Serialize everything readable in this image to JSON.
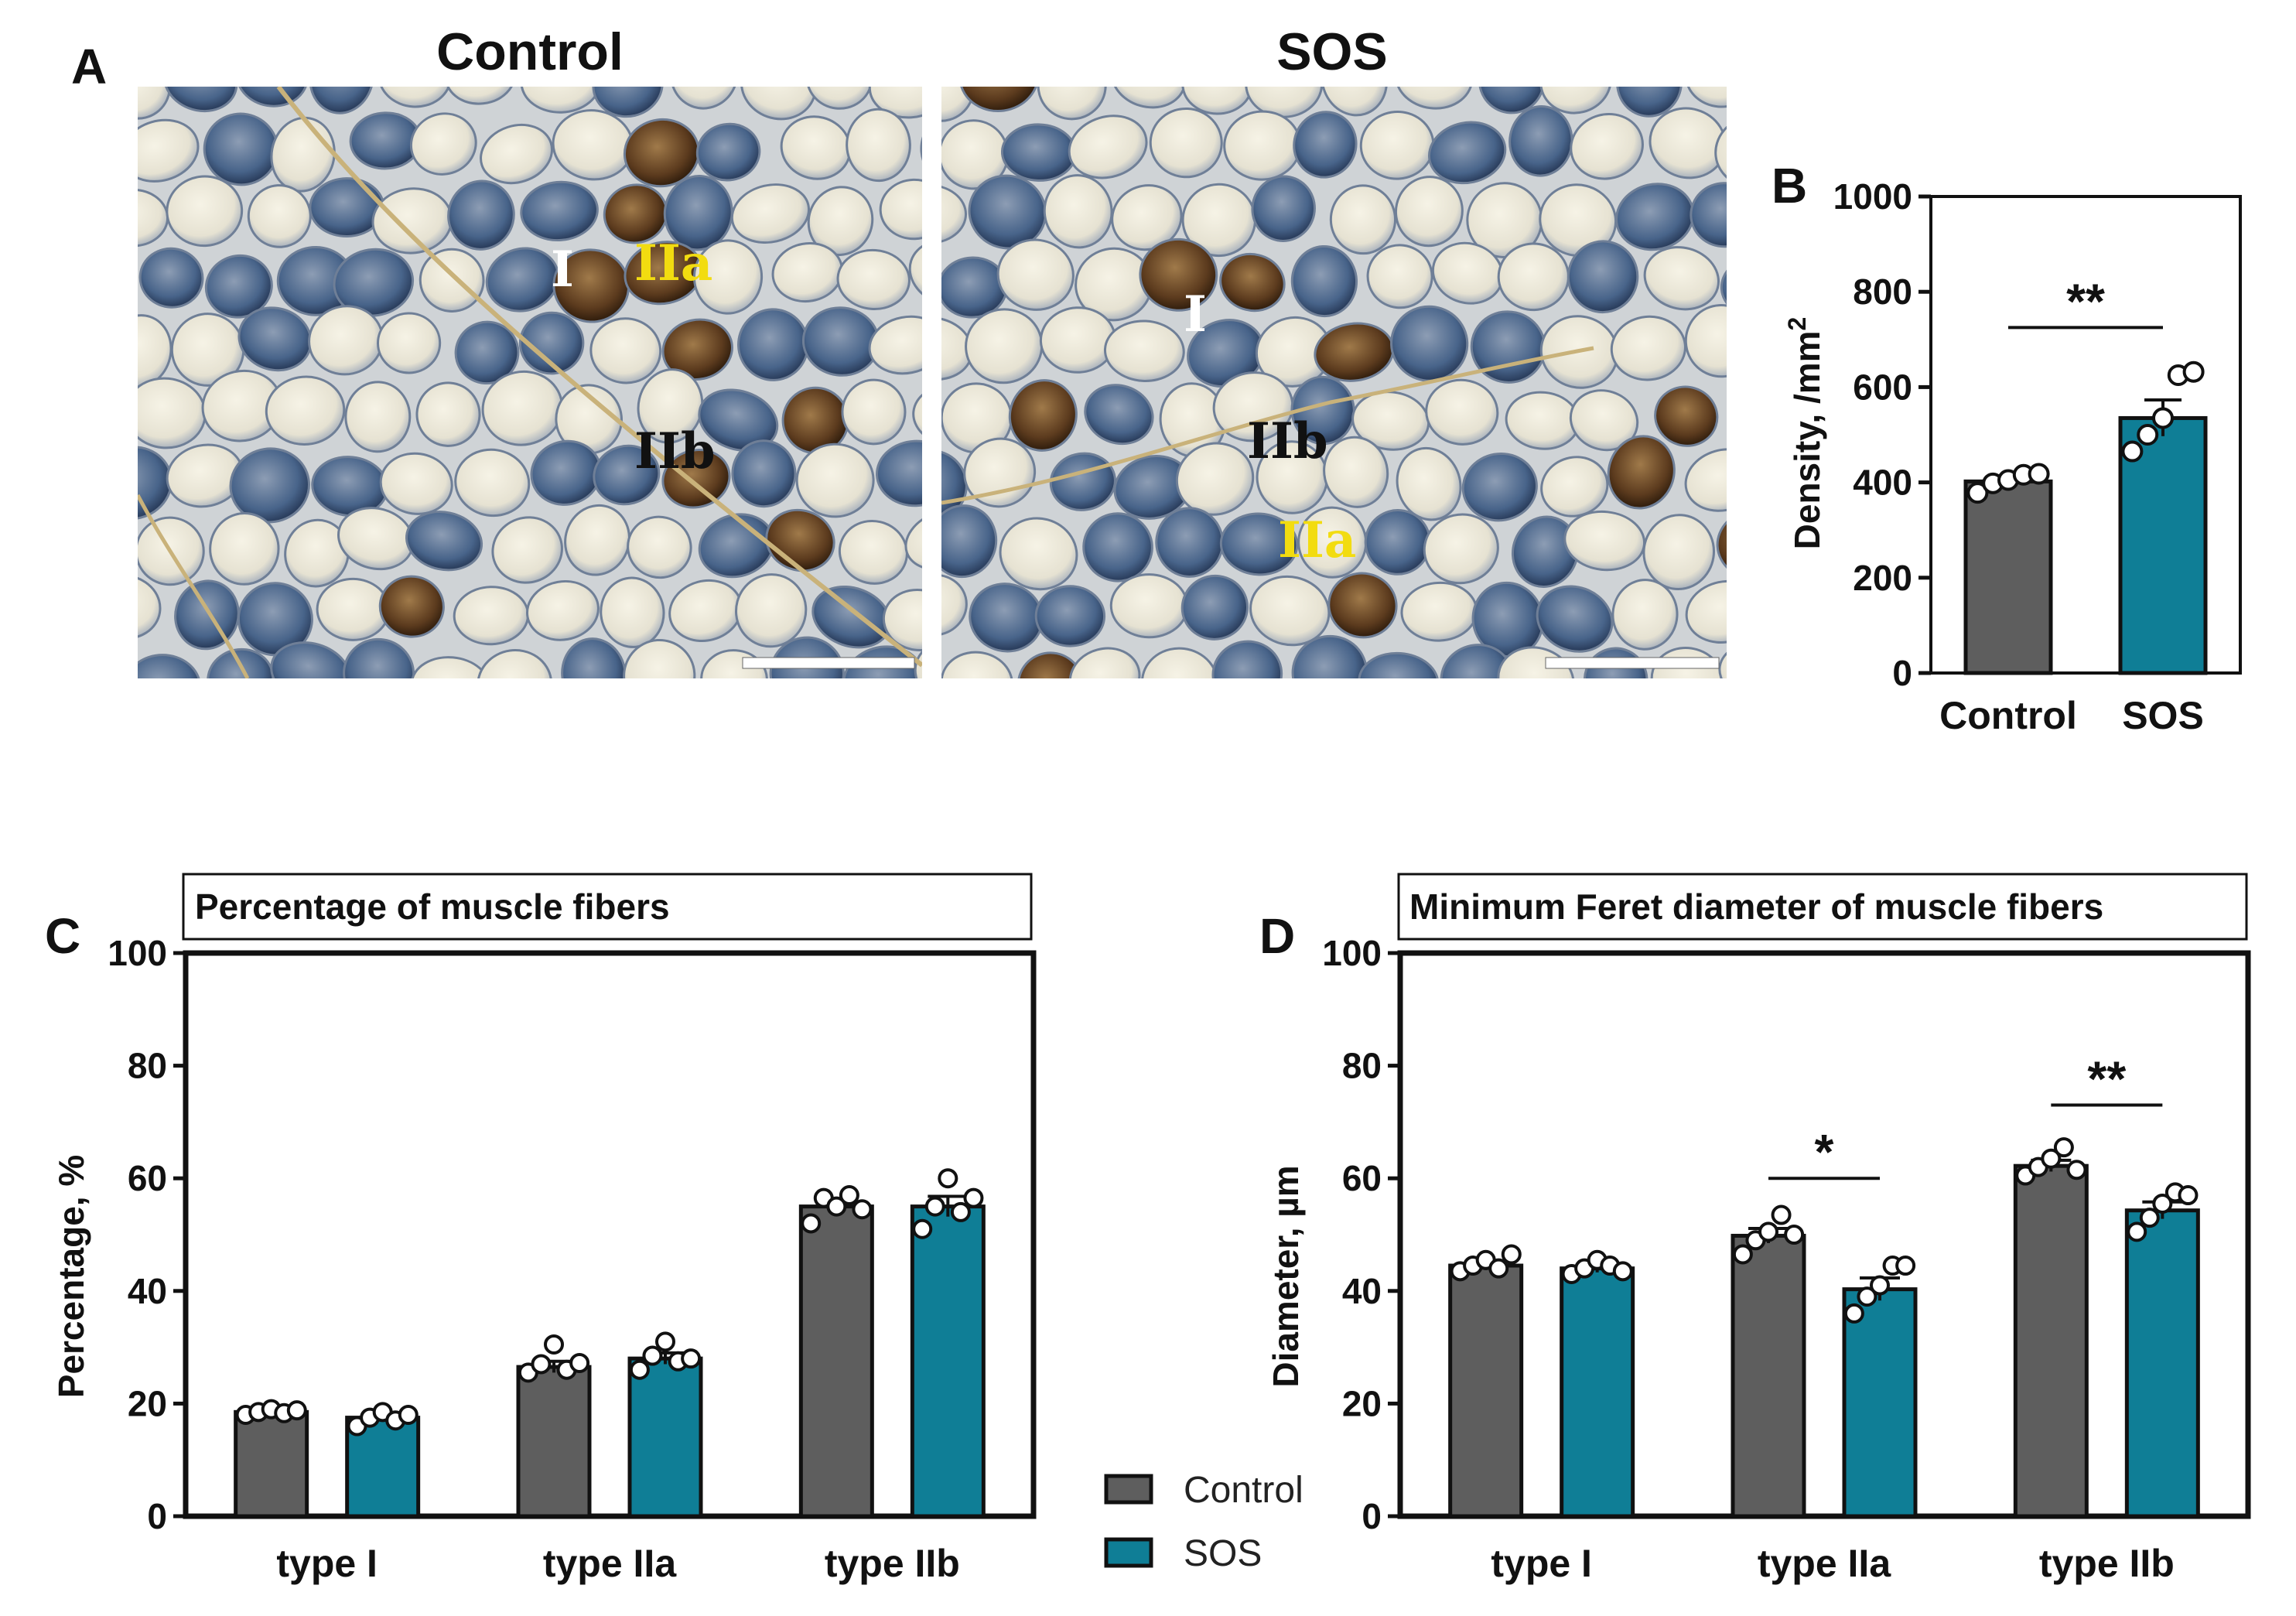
{
  "colors": {
    "control": "#5e5e5e",
    "sos": "#0f7e96",
    "text": "#111111",
    "fiber_light": "#ece8d8",
    "fiber_blue": "#3b5a80",
    "fiber_dark": "#5a3a20",
    "label_yellow": "#f2dc10"
  },
  "panel_a": {
    "letter": "A",
    "images": [
      {
        "title": "Control",
        "labels": [
          "I",
          "IIa",
          "IIb"
        ]
      },
      {
        "title": "SOS",
        "labels": [
          "I",
          "IIb",
          "IIa"
        ]
      }
    ]
  },
  "legend": {
    "items": [
      {
        "label": "Control",
        "color_key": "control"
      },
      {
        "label": "SOS",
        "color_key": "sos"
      }
    ]
  },
  "chart_data": [
    {
      "id": "B",
      "type": "bar",
      "panel_letter": "B",
      "title": "",
      "categories": [
        "Control",
        "SOS"
      ],
      "values": [
        402,
        535
      ],
      "errors": [
        12,
        38
      ],
      "points": [
        [
          378,
          398,
          405,
          416,
          418
        ],
        [
          465,
          500,
          535,
          625,
          632
        ]
      ],
      "ylabel": "Density, /mm",
      "ylabel_sup": "2",
      "ylim": [
        0,
        1000
      ],
      "yticks": [
        0,
        200,
        400,
        600,
        800,
        1000
      ],
      "significance": [
        {
          "from": 0,
          "to": 1,
          "label": "**",
          "y": 725
        }
      ]
    },
    {
      "id": "C",
      "type": "bar",
      "panel_letter": "C",
      "title": "Percentage of muscle fibers",
      "categories": [
        "type I",
        "type IIa",
        "type IIb"
      ],
      "series": [
        {
          "name": "Control",
          "values": [
            18.5,
            26.5,
            55
          ],
          "errors": [
            0.6,
            1.0,
            1.2
          ],
          "points": [
            [
              18,
              18.5,
              19,
              18.3,
              18.8
            ],
            [
              25.5,
              27,
              30.5,
              26,
              27.2
            ],
            [
              52,
              56.5,
              55,
              57,
              54.5
            ]
          ]
        },
        {
          "name": "SOS",
          "values": [
            17.5,
            28,
            55
          ],
          "errors": [
            0.7,
            1.0,
            1.8
          ],
          "points": [
            [
              16,
              17.5,
              18.5,
              17,
              18
            ],
            [
              26,
              28.5,
              31,
              27.5,
              28
            ],
            [
              51,
              55,
              60,
              54,
              56.5
            ]
          ]
        }
      ],
      "ylabel": "Percentage, %",
      "ylim": [
        0,
        100
      ],
      "yticks": [
        0,
        20,
        40,
        60,
        80,
        100
      ],
      "significance": []
    },
    {
      "id": "D",
      "type": "bar",
      "panel_letter": "D",
      "title": "Minimum Feret diameter of muscle fibers",
      "categories": [
        "type I",
        "type IIa",
        "type IIb"
      ],
      "series": [
        {
          "name": "Control",
          "values": [
            44.5,
            49.8,
            62.2
          ],
          "errors": [
            0.8,
            1.3,
            1.0
          ],
          "points": [
            [
              43.5,
              44.5,
              45.5,
              44,
              46.5
            ],
            [
              46.5,
              49,
              50.5,
              53.5,
              50
            ],
            [
              60.5,
              62,
              63.5,
              65.5,
              61.5
            ]
          ]
        },
        {
          "name": "SOS",
          "values": [
            44,
            40.3,
            54.3
          ],
          "errors": [
            0.7,
            2.0,
            1.5
          ],
          "points": [
            [
              43,
              44,
              45.5,
              44.5,
              43.5
            ],
            [
              36,
              39,
              41,
              44.5,
              44.5
            ],
            [
              50.5,
              53,
              55.5,
              57.5,
              57
            ]
          ]
        }
      ],
      "ylabel": "Diameter, µm",
      "ylim": [
        0,
        100
      ],
      "yticks": [
        0,
        20,
        40,
        60,
        80,
        100
      ],
      "significance": [
        {
          "category": 1,
          "label": "*",
          "y": 60
        },
        {
          "category": 2,
          "label": "**",
          "y": 73
        }
      ]
    }
  ]
}
